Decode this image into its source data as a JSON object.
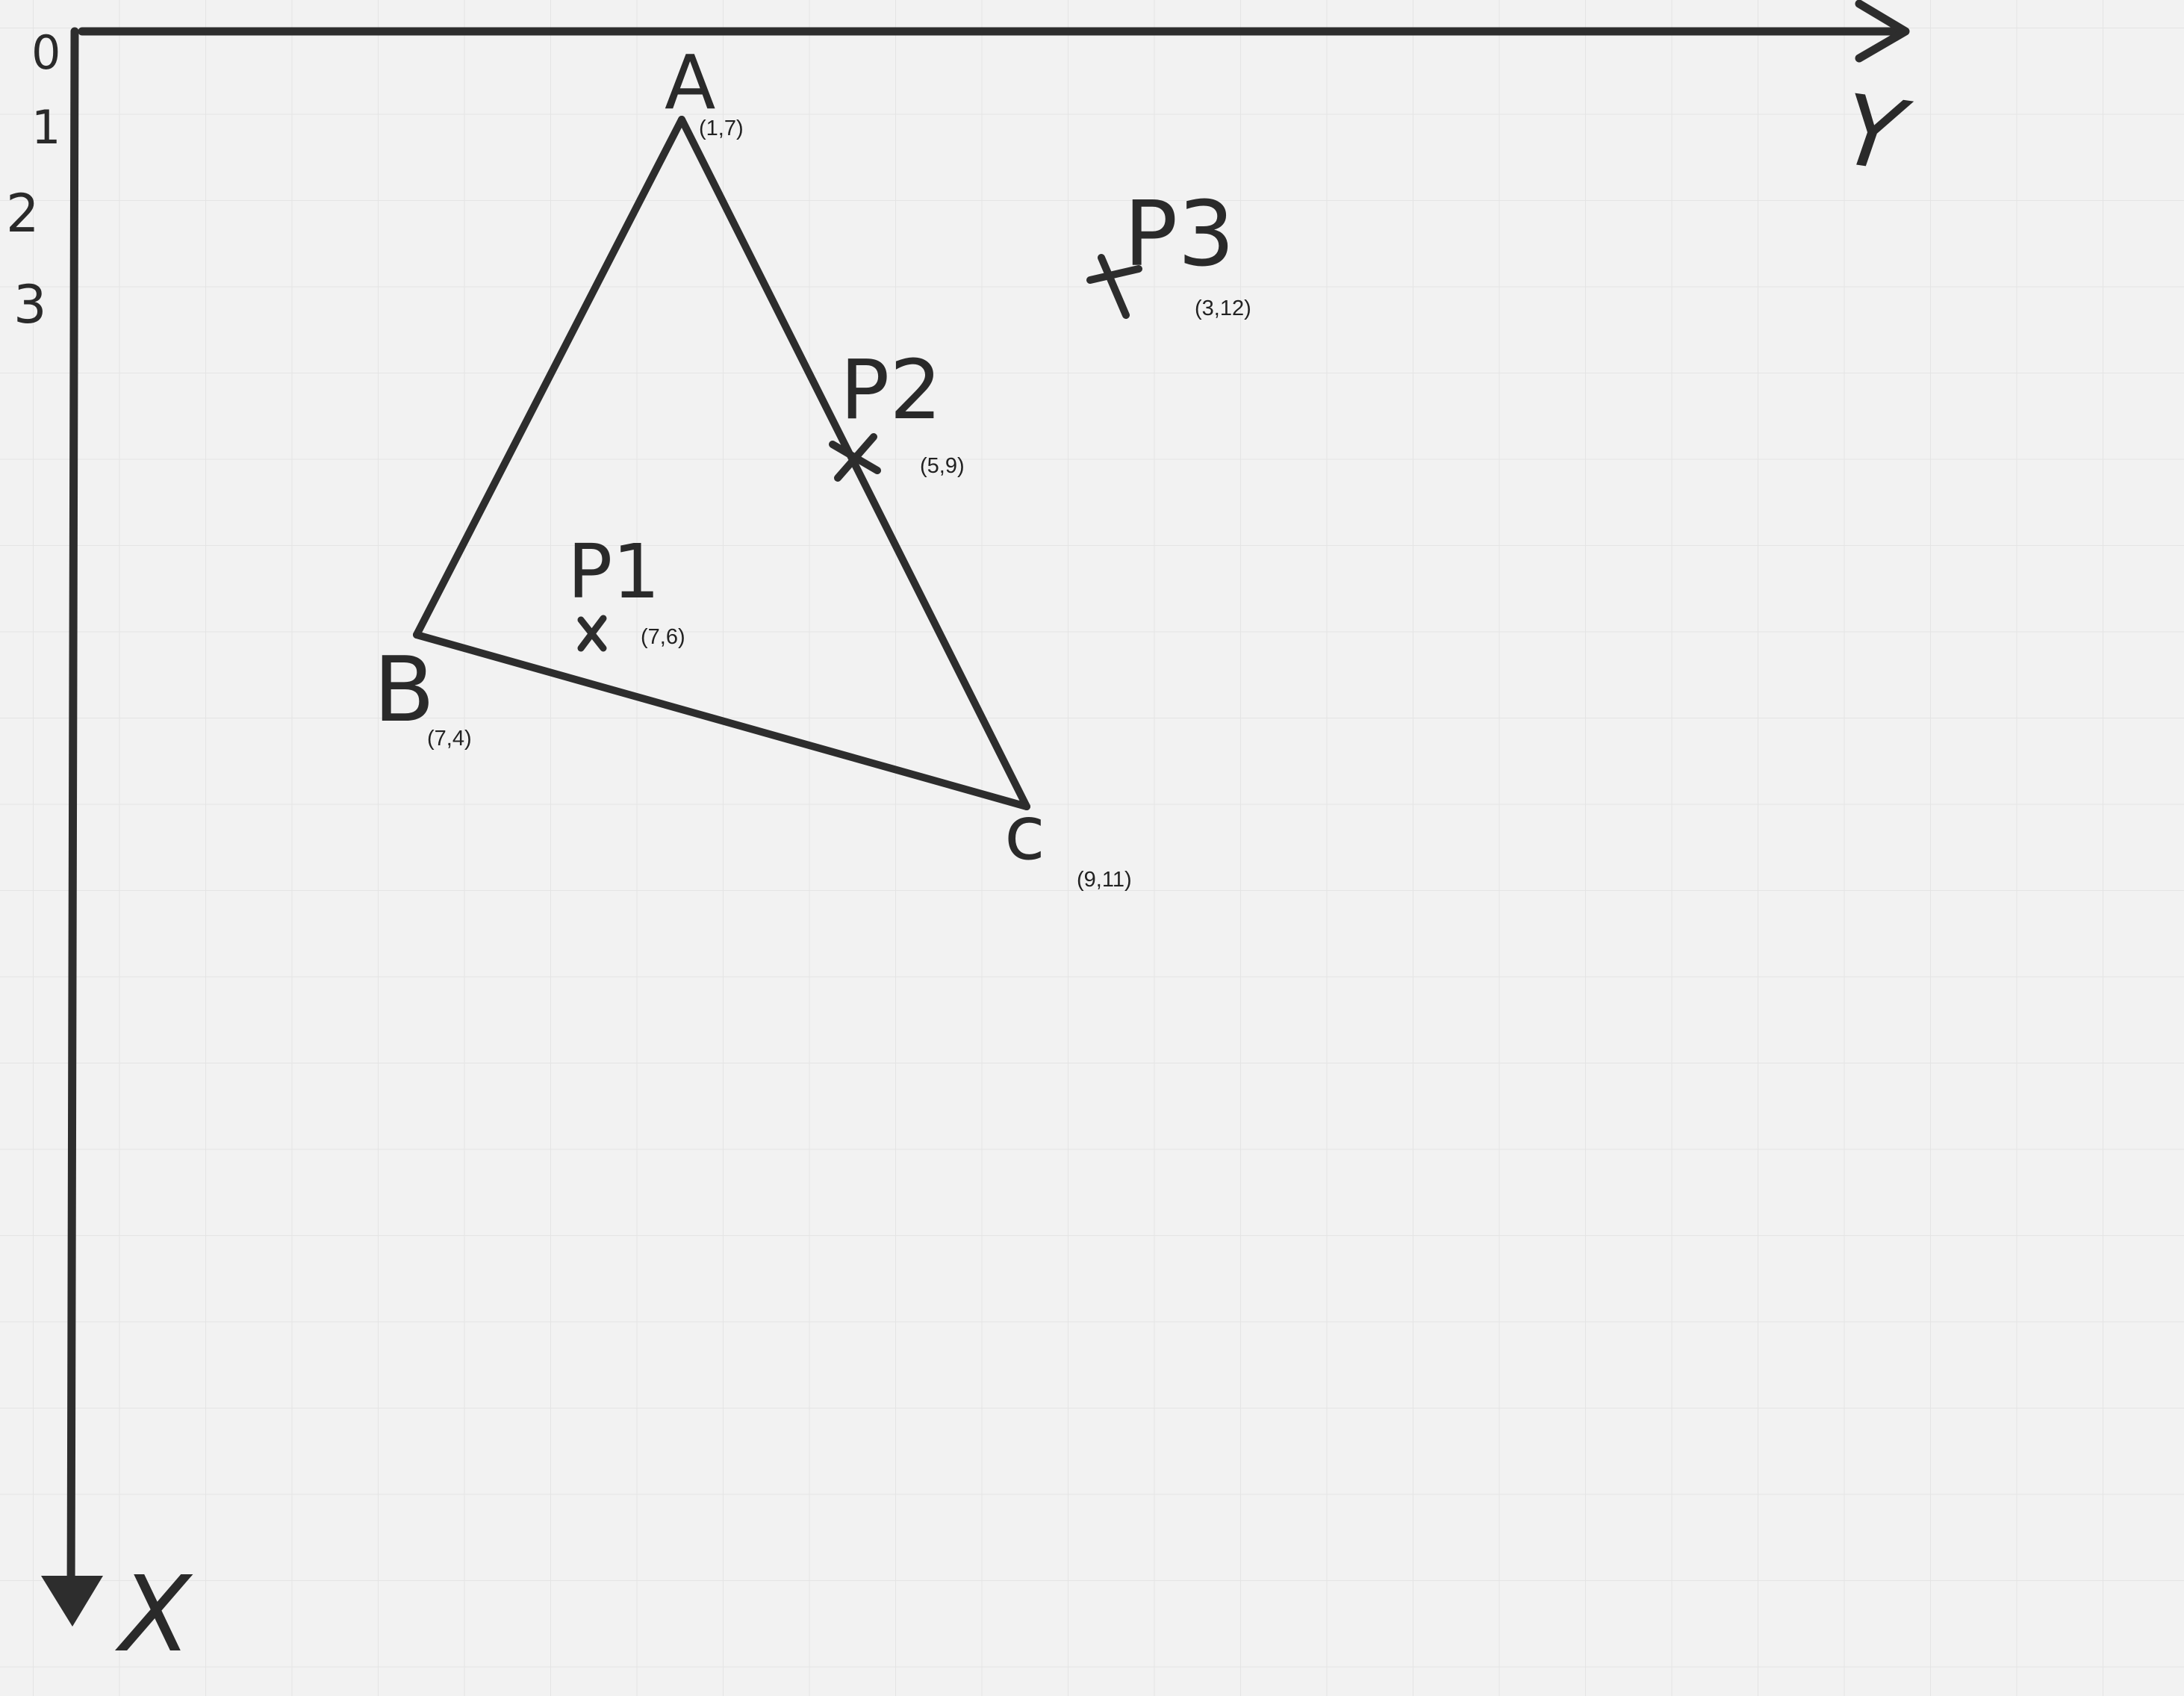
{
  "axes": {
    "x_label": "X",
    "y_label": "Y",
    "tick_labels": [
      "0",
      "1",
      "2",
      "3"
    ]
  },
  "vertices": {
    "A": {
      "label": "A",
      "coord": "(1,7)"
    },
    "B": {
      "label": "B",
      "coord": "(7,4)"
    },
    "C": {
      "label": "c",
      "coord": "(9,11)"
    }
  },
  "points": {
    "P1": {
      "label": "P1",
      "coord": "(7,6)"
    },
    "P2": {
      "label": "P2",
      "coord": "(5,9)"
    },
    "P3": {
      "label": "P3",
      "coord": "(3,12)"
    }
  },
  "colors": {
    "background": "#f2f2f2",
    "grid": "#e4e4e4",
    "ink": "#2d2d2d"
  }
}
